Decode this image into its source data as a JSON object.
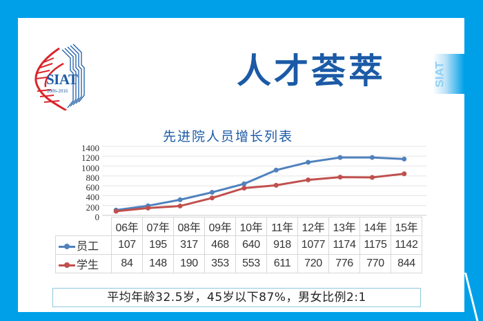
{
  "logo": {
    "text": "SIAT",
    "years": "2006-2016"
  },
  "header": {
    "title": "人才荟萃",
    "side_tag": "SIAT"
  },
  "summary": "平均年龄32.5岁，45岁以下87%，男女比例2:1",
  "colors": {
    "frame": "#00a0e9",
    "title": "#1b5aa6",
    "staff": "#4f81bd",
    "students": "#c0504d"
  },
  "chart_data": {
    "type": "line",
    "title": "先进院人员增长列表",
    "categories": [
      "06年",
      "07年",
      "08年",
      "09年",
      "10年",
      "11年",
      "12年",
      "13年",
      "14年",
      "15年"
    ],
    "series": [
      {
        "name": "员工",
        "values": [
          107,
          195,
          317,
          468,
          640,
          918,
          1077,
          1174,
          1175,
          1142
        ]
      },
      {
        "name": "学生",
        "values": [
          84,
          148,
          190,
          353,
          553,
          611,
          720,
          776,
          770,
          844
        ]
      }
    ],
    "yticks": [
      "1400",
      "1200",
      "1000",
      "800",
      "600",
      "400",
      "200",
      "0"
    ],
    "ylim": [
      0,
      1400
    ],
    "grid": true,
    "legend_position": "data-table",
    "xlabel": "",
    "ylabel": ""
  }
}
